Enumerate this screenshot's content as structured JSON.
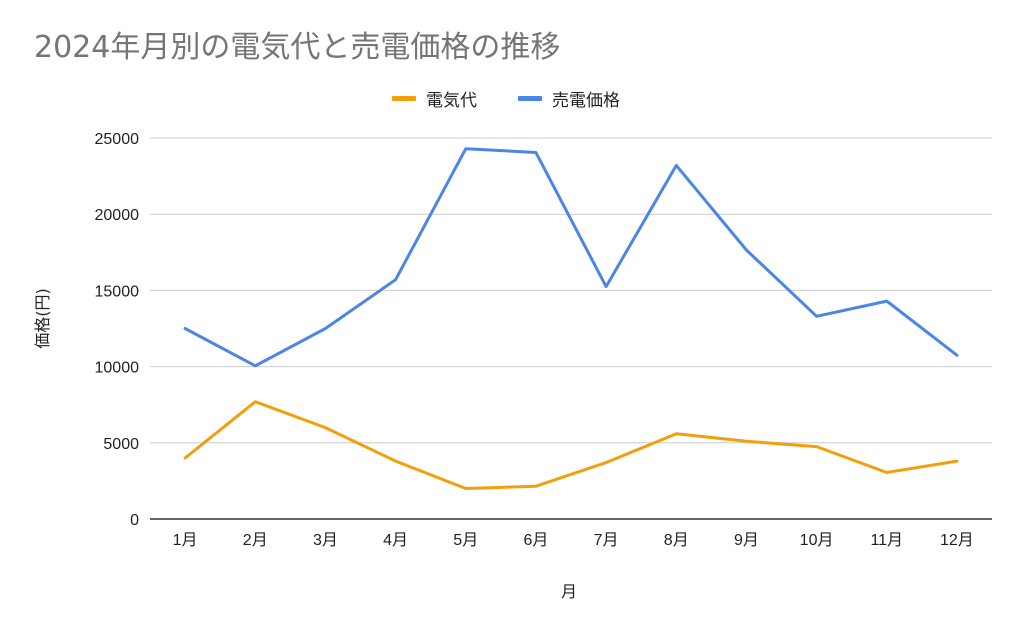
{
  "chart_data": {
    "type": "line",
    "title": "2024年月別の電気代と売電価格の推移",
    "xlabel": "月",
    "ylabel": "価格(円)",
    "categories": [
      "1月",
      "2月",
      "3月",
      "4月",
      "5月",
      "6月",
      "7月",
      "8月",
      "9月",
      "10月",
      "11月",
      "12月"
    ],
    "ylim": [
      0,
      25000
    ],
    "yticks": [
      0,
      5000,
      10000,
      15000,
      20000,
      25000
    ],
    "grid": true,
    "legend": "top-center",
    "series": [
      {
        "name": "電気代",
        "color": "#f59e0b",
        "values": [
          4000,
          7700,
          6000,
          3800,
          2000,
          2150,
          3700,
          5600,
          5100,
          4750,
          3050,
          3800
        ]
      },
      {
        "name": "売電価格",
        "color": "#4a86e8",
        "values": [
          12500,
          10050,
          12500,
          15700,
          24300,
          24050,
          15250,
          23200,
          17650,
          13300,
          14300,
          10750
        ]
      }
    ]
  }
}
